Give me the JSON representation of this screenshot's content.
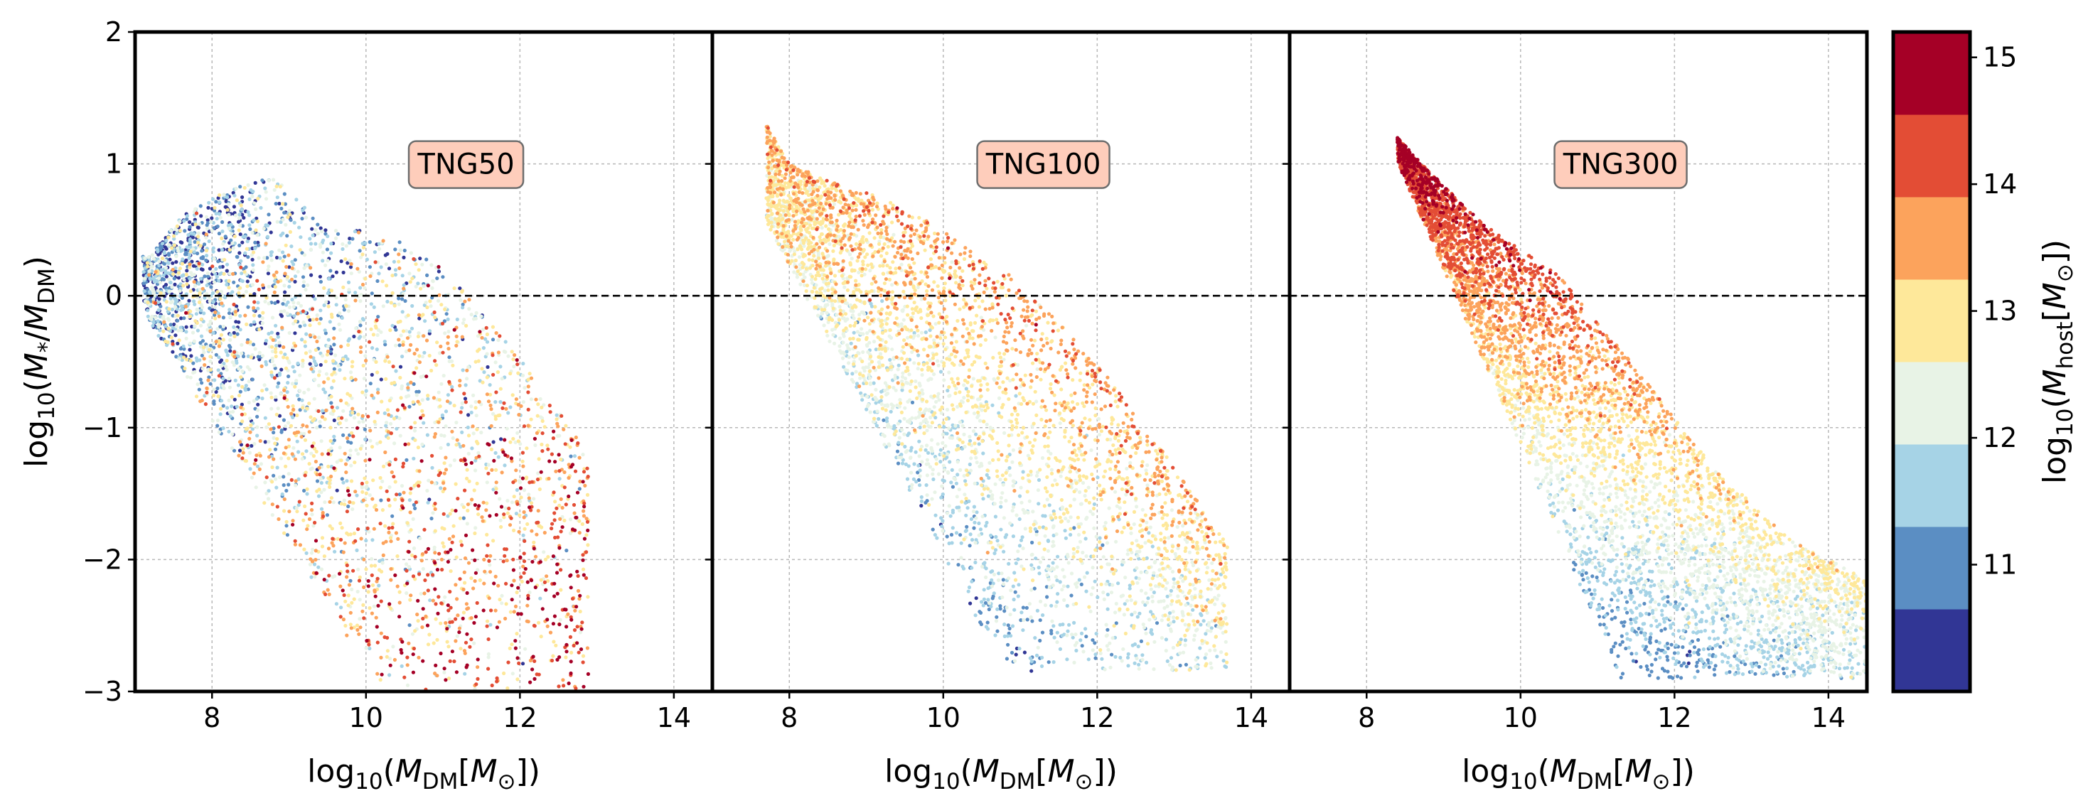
{
  "chart_data": {
    "type": "scatter",
    "layout": "three panels sharing the y axis, plus a discrete colorbar on the right",
    "y_axis": {
      "label_prefix": "log",
      "label_log_subscript": "10",
      "label_open": "(",
      "label_m1": "M",
      "label_sub1": "*",
      "label_slash": "/",
      "label_m2": "M",
      "label_sub2": "DM",
      "label_close": ")",
      "ylim": [
        -3,
        2
      ],
      "ticks": [
        2,
        1,
        0,
        -1,
        -2,
        -3
      ],
      "tick_labels": [
        "2",
        "1",
        "0",
        "−1",
        "−2",
        "−3"
      ]
    },
    "x_axis": {
      "label_prefix": "log",
      "label_log_subscript": "10",
      "label_open": "(",
      "label_m": "M",
      "label_sub": "DM",
      "label_bracket_open": "[",
      "label_msun": "M",
      "label_sun_sub": "⊙",
      "label_bracket_close": "])",
      "xlim": [
        7,
        14.5
      ],
      "ticks": [
        8,
        10,
        12,
        14
      ],
      "tick_labels": [
        "8",
        "10",
        "12",
        "14"
      ]
    },
    "reference_line": {
      "y": 0,
      "style": "dashed"
    },
    "grid": true,
    "colorbar": {
      "label_prefix": "log",
      "label_log_subscript": "10",
      "label_open": "(",
      "label_m": "M",
      "label_sub": "host",
      "label_bracket_open": "[",
      "label_msun": "M",
      "label_sun_sub": "⊙",
      "label_bracket_close": "])",
      "range": [
        10,
        15.2
      ],
      "ticks": [
        11,
        12,
        13,
        14,
        15
      ],
      "tick_labels": [
        "11",
        "12",
        "13",
        "14",
        "15"
      ],
      "bins": [
        {
          "from": 10.0,
          "to": 10.65,
          "color": "#313695"
        },
        {
          "from": 10.65,
          "to": 11.3,
          "color": "#5b8ec3"
        },
        {
          "from": 11.3,
          "to": 11.95,
          "color": "#a6d3e6"
        },
        {
          "from": 11.95,
          "to": 12.6,
          "color": "#e8f3e6"
        },
        {
          "from": 12.6,
          "to": 13.25,
          "color": "#fee89a"
        },
        {
          "from": 13.25,
          "to": 13.9,
          "color": "#fca35c"
        },
        {
          "from": 13.9,
          "to": 14.55,
          "color": "#e34d35"
        },
        {
          "from": 14.55,
          "to": 15.2,
          "color": "#a50026"
        }
      ]
    },
    "panels": [
      {
        "title": "TNG50",
        "envelope": {
          "x_min": 7.1,
          "x_max": 12.9,
          "upper": [
            [
              7.2,
              0.3
            ],
            [
              7.6,
              0.6
            ],
            [
              8.2,
              0.8
            ],
            [
              8.8,
              0.9
            ],
            [
              9.5,
              0.5
            ],
            [
              10.2,
              0.5
            ],
            [
              11.0,
              0.2
            ],
            [
              11.8,
              -0.3
            ],
            [
              12.9,
              -1.2
            ]
          ],
          "lower_line": {
            "x0": 7.3,
            "y0": -0.3,
            "slope": -0.93
          },
          "lower_floor": -3.0
        },
        "color_trend": {
          "base": 12.6,
          "dx": 0.25,
          "dy": -0.55,
          "scatter": 1.0
        },
        "n_points": 3500
      },
      {
        "title": "TNG100",
        "envelope": {
          "x_min": 7.7,
          "x_max": 13.7,
          "upper": [
            [
              7.7,
              1.3
            ],
            [
              8.0,
              1.0
            ],
            [
              8.6,
              0.85
            ],
            [
              9.2,
              0.75
            ],
            [
              10.0,
              0.5
            ],
            [
              11.0,
              0.1
            ],
            [
              12.0,
              -0.5
            ],
            [
              13.0,
              -1.3
            ],
            [
              13.7,
              -1.9
            ]
          ],
          "lower_line": {
            "x0": 8.3,
            "y0": -0.1,
            "slope": -1.1
          },
          "lower_floor": -2.85
        },
        "color_trend": {
          "base": 12.3,
          "dx": 0.45,
          "dy": 0.9,
          "scatter": 0.45
        },
        "n_points": 4200
      },
      {
        "title": "TNG300",
        "envelope": {
          "x_min": 8.4,
          "x_max": 14.5,
          "upper": [
            [
              8.4,
              1.2
            ],
            [
              8.8,
              0.95
            ],
            [
              9.5,
              0.55
            ],
            [
              10.5,
              0.15
            ],
            [
              11.5,
              -0.55
            ],
            [
              12.5,
              -1.3
            ],
            [
              13.5,
              -1.85
            ],
            [
              14.5,
              -2.15
            ]
          ],
          "lower_line": {
            "x0": 9.0,
            "y0": 0.2,
            "slope": -1.35
          },
          "lower_floor": -2.9
        },
        "color_trend": {
          "base": 12.6,
          "dx": 0.35,
          "dy": 1.2,
          "scatter": 0.3
        },
        "n_points": 5200
      }
    ]
  }
}
